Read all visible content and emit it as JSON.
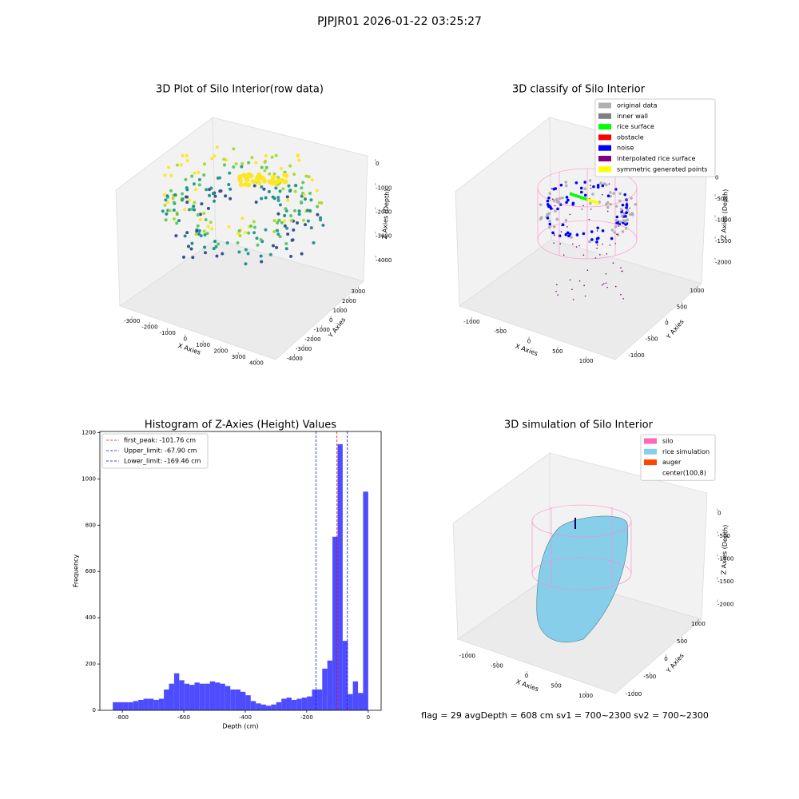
{
  "title": "PJPJR01 2026-01-22 03:25:27",
  "footer": "flag = 29  avgDepth = 608 cm  sv1 = 700~2300  sv2 = 700~2300",
  "chart_data": [
    {
      "type": "scatter3d",
      "title": "3D Plot of Silo Interior(row data)",
      "xlabel": "X Axies",
      "ylabel": "Y Axies",
      "zlabel": "Z Axies (Depth)",
      "xlim": [
        -3500,
        4500
      ],
      "xticks": [
        -3000,
        -2000,
        -1000,
        0,
        1000,
        2000,
        3000,
        4000
      ],
      "ylim": [
        -4500,
        3500
      ],
      "yticks": [
        -4000,
        -3000,
        -2000,
        -1000,
        0,
        1000,
        2000,
        3000
      ],
      "zlim": [
        -4500,
        300
      ],
      "zticks": [
        0,
        -1000,
        -2000,
        -3000,
        -4000
      ]
    },
    {
      "type": "scatter3d",
      "title": "3D classify of Silo Interior",
      "xlabel": "X Axies",
      "ylabel": "Y Axies",
      "zlabel": "Z Axies (Depth)",
      "xlim": [
        -1200,
        1200
      ],
      "xticks": [
        -1000,
        -500,
        0,
        500,
        1000
      ],
      "ylim": [
        -1200,
        1200
      ],
      "yticks": [
        -1000,
        -500,
        0,
        500,
        1000
      ],
      "zlim": [
        -2200,
        100
      ],
      "zticks": [
        0,
        -500,
        -1000,
        -1500,
        -2000
      ],
      "legend": [
        {
          "name": "original data",
          "color": "#b0b0b0"
        },
        {
          "name": "inner wall",
          "color": "#808080"
        },
        {
          "name": "rice surface",
          "color": "#00ff00"
        },
        {
          "name": "obstacle",
          "color": "#ff0000"
        },
        {
          "name": "noise",
          "color": "#0000ff"
        },
        {
          "name": "interpolated rice surface",
          "color": "#800080"
        },
        {
          "name": "symmetric generated points",
          "color": "#ffff00"
        }
      ]
    },
    {
      "type": "histogram",
      "title": "Histogram of Z-Axies (Height) Values",
      "xlabel": "Depth (cm)",
      "ylabel": "Frequency",
      "color": "#4d4dff",
      "bins": [
        -831,
        -814.38,
        -797.76,
        -781.14,
        -764.52,
        -747.9,
        -731.28,
        -714.66,
        -698.04,
        -681.42,
        -664.8,
        -648.18,
        -631.56,
        -614.94,
        -598.32,
        -581.7,
        -565.08,
        -548.46,
        -531.84,
        -515.22,
        -498.6,
        -481.98,
        -465.36,
        -448.74,
        -432.12,
        -415.5,
        -398.88,
        -382.26,
        -365.64,
        -349.02,
        -332.4,
        -315.78,
        -299.16,
        -282.54,
        -265.92,
        -249.3,
        -232.68,
        -216.06,
        -199.44,
        -182.82,
        -166.2,
        -149.58,
        -132.96,
        -116.34,
        -99.72,
        -83.1,
        -66.48,
        -49.86,
        -33.24,
        -16.62,
        0
      ],
      "values": [
        35,
        35,
        35,
        35,
        40,
        45,
        50,
        50,
        45,
        50,
        90,
        115,
        160,
        130,
        115,
        110,
        120,
        115,
        115,
        125,
        120,
        115,
        105,
        90,
        90,
        80,
        65,
        40,
        30,
        25,
        20,
        25,
        35,
        50,
        55,
        45,
        50,
        55,
        60,
        90,
        90,
        180,
        215,
        750,
        1150,
        300,
        70,
        125,
        75,
        945
      ],
      "xlim": [
        -873,
        42
      ],
      "xticks": [
        -800,
        -600,
        -400,
        -200,
        0
      ],
      "ylim": [
        0,
        1205
      ],
      "yticks": [
        0,
        200,
        400,
        600,
        800,
        1000,
        1200
      ],
      "lines": [
        {
          "name": "first_peak: -101.76 cm",
          "value": -101.76,
          "color": "#ff0000"
        },
        {
          "name": "Upper_limit: -67.90 cm",
          "value": -67.9,
          "color": "#0000ff"
        },
        {
          "name": "Lower_limit: -169.46 cm",
          "value": -169.46,
          "color": "#0000ff"
        }
      ]
    },
    {
      "type": "surface3d",
      "title": "3D simulation of Silo Interior",
      "xlabel": "X Axies",
      "ylabel": "Y Axies",
      "zlabel": "Z Axies (Depth)",
      "xlim": [
        -1200,
        1200
      ],
      "xticks": [
        -1000,
        -500,
        0,
        500,
        1000
      ],
      "ylim": [
        -1200,
        1200
      ],
      "yticks": [
        -1000,
        -500,
        0,
        500,
        1000
      ],
      "zlim": [
        -2200,
        150
      ],
      "zticks": [
        0,
        -500,
        -1000,
        -1500,
        -2000
      ],
      "legend": [
        {
          "name": "silo",
          "color": "#ff69b4"
        },
        {
          "name": "rice simulation",
          "color": "#87ceeb"
        },
        {
          "name": "auger",
          "color": "#ff4500"
        },
        {
          "name": "center(100,8)",
          "color": "#ffffff"
        }
      ]
    }
  ]
}
